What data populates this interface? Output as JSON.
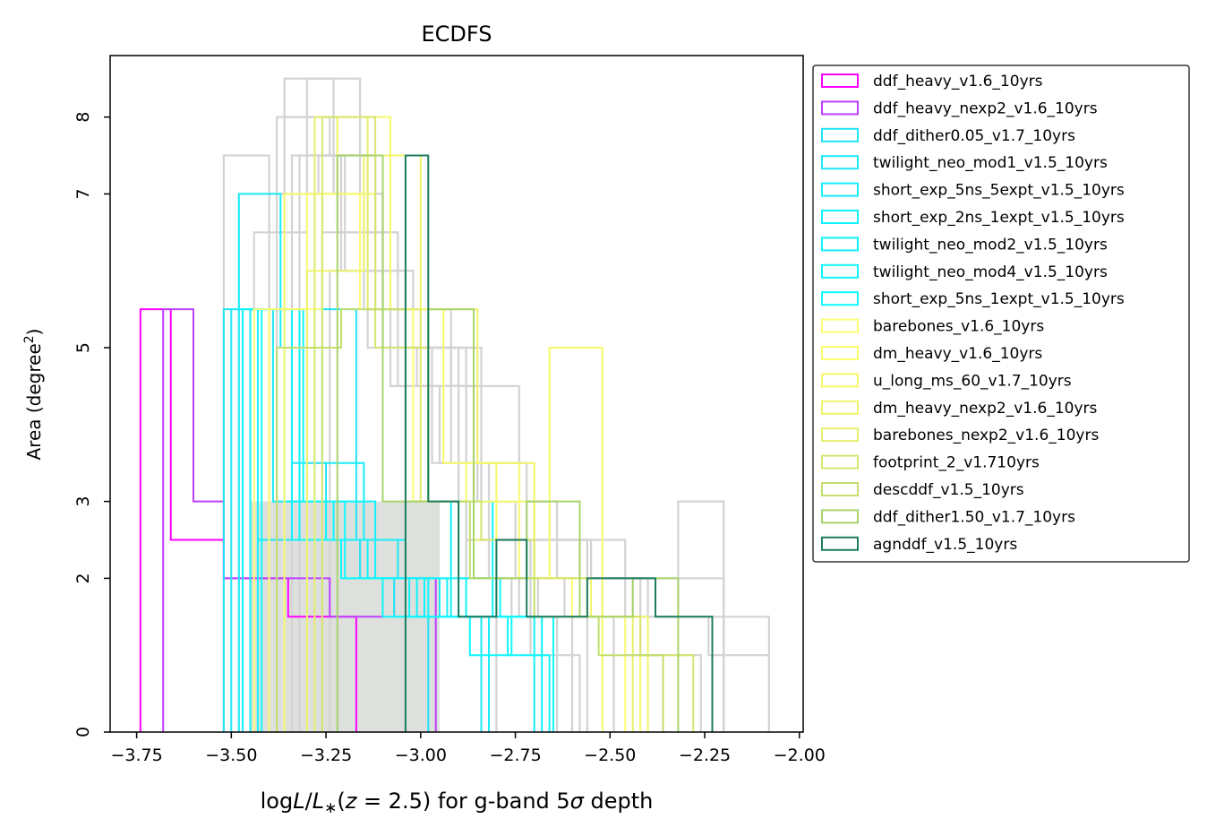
{
  "chart_data": {
    "type": "histogram",
    "title": "ECDFS",
    "xlabel_prefix": "log",
    "xlabel_L": "L",
    "xlabel_div": "/",
    "xlabel_Lstar": "L",
    "xlabel_star": "∗",
    "xlabel_paren_open": "(",
    "xlabel_z": "z",
    "xlabel_eq": " = 2.5)",
    "xlabel_mid": " for g-band 5",
    "xlabel_sigma": "σ",
    "xlabel_suffix": " depth",
    "ylabel_main": "Area (degree",
    "ylabel_sup": "2",
    "ylabel_close": ")",
    "xlim": [
      -3.82,
      -1.99
    ],
    "ylim": [
      0,
      8.8
    ],
    "xticks": [
      {
        "value": -3.75,
        "label": "−3.75"
      },
      {
        "value": -3.5,
        "label": "−3.50"
      },
      {
        "value": -3.25,
        "label": "−3.25"
      },
      {
        "value": -3.0,
        "label": "−3.00"
      },
      {
        "value": -2.75,
        "label": "−2.75"
      },
      {
        "value": -2.5,
        "label": "−2.50"
      },
      {
        "value": -2.25,
        "label": "−2.25"
      },
      {
        "value": -2.0,
        "label": "−2.00"
      }
    ],
    "yticks": [
      {
        "value": 0,
        "label": "0"
      },
      {
        "value": 2,
        "label": "2"
      },
      {
        "value": 3,
        "label": "3"
      },
      {
        "value": 5,
        "label": "5"
      },
      {
        "value": 7,
        "label": "7"
      },
      {
        "value": 8,
        "label": "8"
      }
    ],
    "legend_position": "outside-right-top",
    "background_hist": {
      "color": "#d3d3d3",
      "fill": "#dde0dc",
      "filled_range": [
        -3.45,
        -2.95
      ],
      "filled_height": 3.0,
      "series": [
        {
          "bins": [
            -3.52,
            -3.4,
            -3.3,
            -3.2,
            -3.1,
            -3.0,
            -2.9,
            -2.8
          ],
          "counts": [
            7.5,
            5.5,
            7.5,
            6.0,
            5.5,
            4.5,
            2.0
          ]
        },
        {
          "bins": [
            -3.48,
            -3.36,
            -3.24,
            -3.12,
            -3.0,
            -2.88,
            -2.76,
            -2.64
          ],
          "counts": [
            7.0,
            8.0,
            7.5,
            5.5,
            3.0,
            2.0,
            1.5
          ]
        },
        {
          "bins": [
            -3.44,
            -3.3,
            -3.16,
            -3.02,
            -2.88,
            -2.74,
            -2.6
          ],
          "counts": [
            6.5,
            8.5,
            6.0,
            5.0,
            2.5,
            1.5
          ]
        },
        {
          "bins": [
            -3.4,
            -3.27,
            -3.14,
            -3.01,
            -2.88,
            -2.75,
            -2.62,
            -2.49
          ],
          "counts": [
            7.0,
            7.5,
            5.0,
            4.5,
            3.0,
            2.0,
            1.5
          ]
        },
        {
          "bins": [
            -3.38,
            -3.22,
            -3.06,
            -2.9,
            -2.74,
            -2.58,
            -2.42
          ],
          "counts": [
            8.0,
            6.5,
            5.0,
            3.0,
            2.5,
            2.0
          ]
        },
        {
          "bins": [
            -3.36,
            -3.23,
            -3.1,
            -2.97,
            -2.84,
            -2.71,
            -2.58
          ],
          "counts": [
            8.5,
            7.0,
            5.0,
            3.5,
            2.5,
            1.0
          ]
        },
        {
          "bins": [
            -3.34,
            -3.21,
            -3.08,
            -2.95,
            -2.82,
            -2.69,
            -2.56
          ],
          "counts": [
            7.5,
            6.0,
            4.5,
            3.5,
            2.0,
            1.5
          ]
        },
        {
          "bins": [
            -3.3,
            -3.15,
            -3.0,
            -2.85,
            -2.7,
            -2.55,
            -2.4,
            -2.25,
            -2.08
          ],
          "counts": [
            7.0,
            5.5,
            5.0,
            3.0,
            2.5,
            2.0,
            1.5,
            1.5
          ]
        },
        {
          "bins": [
            -3.32,
            -3.12,
            -2.92,
            -2.72,
            -2.52,
            -2.32,
            -2.2
          ],
          "counts": [
            7.5,
            5.5,
            3.5,
            2.0,
            1.5,
            3.0
          ]
        },
        {
          "bins": [
            -3.28,
            -3.1,
            -2.92,
            -2.74,
            -2.56,
            -2.38,
            -2.2
          ],
          "counts": [
            7.0,
            5.0,
            4.5,
            2.5,
            2.0,
            2.0
          ]
        },
        {
          "bins": [
            -3.26,
            -3.06,
            -2.86,
            -2.66,
            -2.46,
            -2.26
          ],
          "counts": [
            6.5,
            4.5,
            3.0,
            2.5,
            1.0
          ]
        },
        {
          "bins": [
            -3.24,
            -3.04,
            -2.84,
            -2.64,
            -2.44,
            -2.24,
            -2.08
          ],
          "counts": [
            6.0,
            5.0,
            3.0,
            2.0,
            1.5,
            1.0
          ]
        }
      ]
    },
    "series": [
      {
        "name": "ddf_heavy_v1.6_10yrs",
        "color": "#ff00ff",
        "bins": [
          -3.74,
          -3.66,
          -3.52,
          -3.35,
          -3.17
        ],
        "counts": [
          5.5,
          2.5,
          2.0,
          1.5
        ]
      },
      {
        "name": "ddf_heavy_nexp2_v1.6_10yrs",
        "color": "#bf3fff",
        "bins": [
          -3.68,
          -3.6,
          -3.52,
          -3.38,
          -3.24,
          -3.1,
          -2.96
        ],
        "counts": [
          5.5,
          3.0,
          2.0,
          2.0,
          1.5,
          2.0
        ]
      },
      {
        "name": "ddf_dither0.05_v1.7_10yrs",
        "color": "#20e3f5",
        "bins": [
          -3.52,
          -3.43,
          -3.34,
          -3.25,
          -3.16,
          -3.07,
          -2.98
        ],
        "counts": [
          5.5,
          2.5,
          3.5,
          2.5,
          2.0,
          1.5
        ]
      },
      {
        "name": "twilight_neo_mod1_v1.5_10yrs",
        "color": "#1fe8f7",
        "bins": [
          -3.5,
          -3.39,
          -3.28,
          -3.17,
          -3.06,
          -2.95,
          -2.84
        ],
        "counts": [
          5.5,
          3.0,
          5.5,
          2.5,
          2.0,
          1.5
        ]
      },
      {
        "name": "short_exp_5ns_5expt_v1.5_10yrs",
        "color": "#18eefa",
        "bins": [
          -3.48,
          -3.37,
          -3.26,
          -3.15,
          -3.04,
          -2.93,
          -2.82
        ],
        "counts": [
          7.0,
          5.0,
          3.5,
          2.5,
          2.0,
          1.5
        ]
      },
      {
        "name": "short_exp_2ns_1expt_v1.5_10yrs",
        "color": "#12f2fb",
        "bins": [
          -3.47,
          -3.36,
          -3.25,
          -3.14,
          -3.03,
          -2.92,
          -2.81,
          -2.7
        ],
        "counts": [
          5.5,
          3.0,
          2.5,
          2.0,
          1.5,
          3.0,
          1.5
        ]
      },
      {
        "name": "twilight_neo_mod2_v1.5_10yrs",
        "color": "#0ff4fc",
        "bins": [
          -3.45,
          -3.34,
          -3.23,
          -3.12,
          -3.01,
          -2.9,
          -2.79,
          -2.68
        ],
        "counts": [
          5.5,
          2.5,
          3.0,
          2.0,
          1.5,
          2.0,
          1.5
        ]
      },
      {
        "name": "twilight_neo_mod4_v1.5_10yrs",
        "color": "#0ff6fd",
        "bins": [
          -3.43,
          -3.32,
          -3.21,
          -3.1,
          -2.99,
          -2.88,
          -2.77,
          -2.66
        ],
        "counts": [
          5.5,
          2.5,
          2.0,
          1.5,
          2.0,
          1.5,
          1.0
        ]
      },
      {
        "name": "short_exp_5ns_1expt_v1.5_10yrs",
        "color": "#0ff8ff",
        "bins": [
          -3.42,
          -3.31,
          -3.2,
          -3.09,
          -2.98,
          -2.87,
          -2.76,
          -2.65
        ],
        "counts": [
          5.5,
          3.0,
          2.0,
          2.0,
          1.5,
          1.0,
          1.5
        ]
      },
      {
        "name": "barebones_v1.6_10yrs",
        "color": "#ffff77",
        "bins": [
          -3.44,
          -3.3,
          -3.16,
          -3.02,
          -2.88,
          -2.74,
          -2.6,
          -2.46
        ],
        "counts": [
          5.5,
          7.0,
          5.5,
          3.0,
          3.5,
          2.0,
          1.5
        ]
      },
      {
        "name": "dm_heavy_v1.6_10yrs",
        "color": "#fbfd6f",
        "bins": [
          -3.4,
          -3.26,
          -3.12,
          -2.98,
          -2.84,
          -2.7,
          -2.56,
          -2.42
        ],
        "counts": [
          5.5,
          7.0,
          5.5,
          3.0,
          3.0,
          2.0,
          1.5
        ]
      },
      {
        "name": "u_long_ms_60_v1.7_10yrs",
        "color": "#f7fa6a",
        "bins": [
          -3.36,
          -3.22,
          -3.08,
          -2.94,
          -2.8,
          -2.66,
          -2.52
        ],
        "counts": [
          7.0,
          8.0,
          5.5,
          3.5,
          2.0,
          5.0
        ]
      },
      {
        "name": "dm_heavy_nexp2_v1.6_10yrs",
        "color": "#f0f56a",
        "bins": [
          -3.3,
          -3.15,
          -3.0,
          -2.85,
          -2.7,
          -2.55,
          -2.4
        ],
        "counts": [
          6.0,
          7.5,
          5.5,
          3.5,
          2.0,
          1.5
        ]
      },
      {
        "name": "barebones_nexp2_v1.6_10yrs",
        "color": "#e5ef6e",
        "bins": [
          -3.28,
          -3.14,
          -3.0,
          -2.86,
          -2.72,
          -2.58,
          -2.44
        ],
        "counts": [
          8.0,
          5.5,
          3.0,
          2.5,
          2.0,
          1.5
        ]
      },
      {
        "name": "footprint_2_v1.710yrs",
        "color": "#d8e56e",
        "bins": [
          -3.26,
          -3.12,
          -2.98,
          -2.84,
          -2.7,
          -2.56,
          -2.42,
          -2.28
        ],
        "counts": [
          8.0,
          5.0,
          3.0,
          2.5,
          2.0,
          1.5,
          1.0
        ]
      },
      {
        "name": "descddf_v1.5_10yrs",
        "color": "#c3de6e",
        "bins": [
          -3.38,
          -3.21,
          -3.04,
          -2.87,
          -2.7,
          -2.53,
          -2.36
        ],
        "counts": [
          5.0,
          5.5,
          3.0,
          2.0,
          1.5,
          1.0
        ]
      },
      {
        "name": "ddf_dither1.50_v1.7_10yrs",
        "color": "#a9d46c",
        "bins": [
          -3.22,
          -3.1,
          -2.98,
          -2.86,
          -2.72,
          -2.58,
          -2.44,
          -2.32
        ],
        "counts": [
          7.5,
          3.0,
          5.5,
          2.0,
          3.0,
          1.5,
          2.0
        ]
      },
      {
        "name": "agnddf_v1.5_10yrs",
        "color": "#1c7c60",
        "bins": [
          -3.04,
          -2.98,
          -2.9,
          -2.8,
          -2.72,
          -2.56,
          -2.38,
          -2.23
        ],
        "counts": [
          7.5,
          3.0,
          1.5,
          2.5,
          1.5,
          2.0,
          1.5
        ]
      }
    ]
  }
}
